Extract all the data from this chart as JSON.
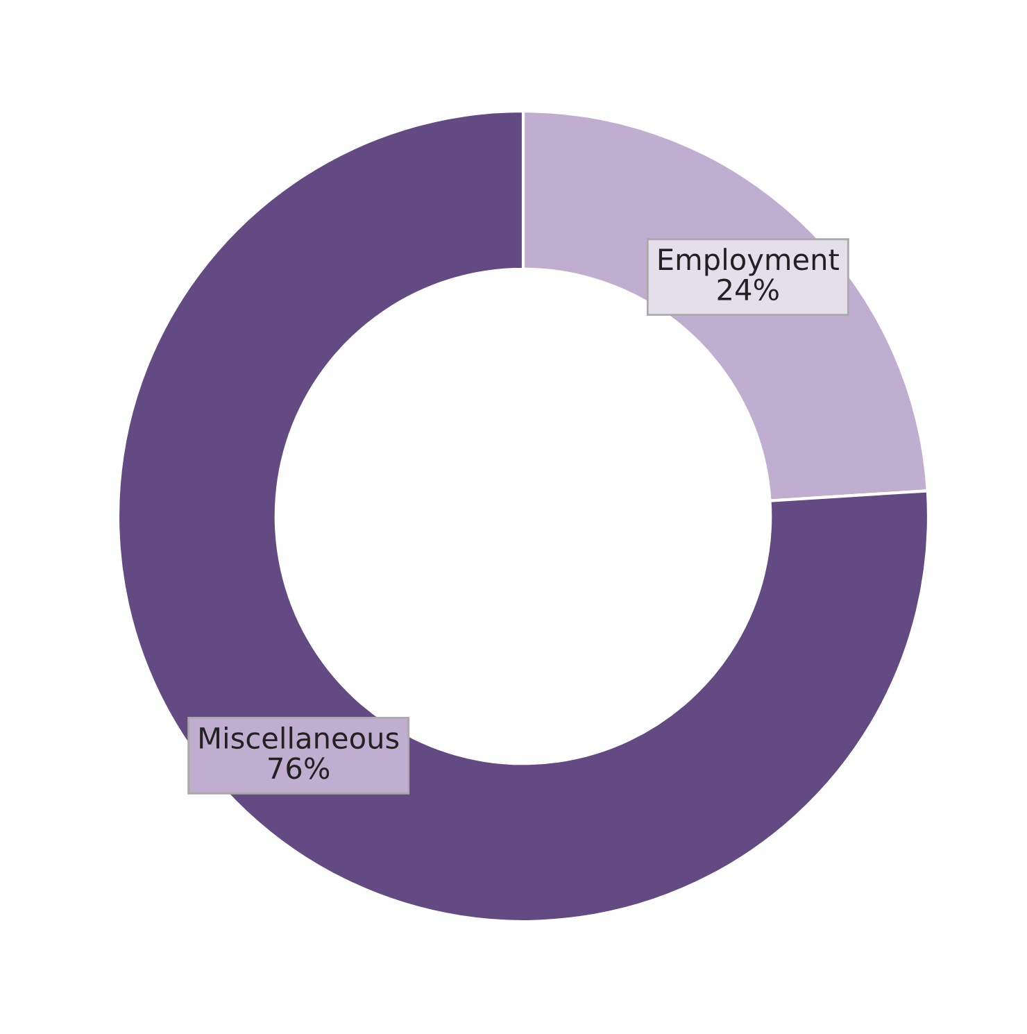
{
  "chart_data": {
    "type": "donut",
    "categories": [
      "Employment",
      "Miscellaneous"
    ],
    "values": [
      24,
      76
    ],
    "colors": [
      "#bfaed0",
      "#644a82"
    ],
    "value_labels": [
      "24%",
      "76%"
    ],
    "legend": false
  }
}
